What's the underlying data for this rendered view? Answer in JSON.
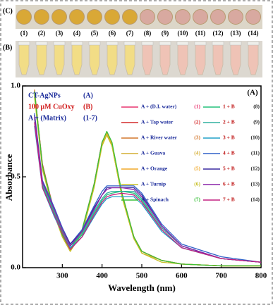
{
  "panels": {
    "C": {
      "label": "(C)",
      "wells": [
        "(1)",
        "(2)",
        "(3)",
        "(4)",
        "(5)",
        "(6)",
        "(7)",
        "(8)",
        "(9)",
        "(10)",
        "(11)",
        "(12)",
        "(13)",
        "(14)"
      ]
    },
    "B": {
      "label": "(B)"
    }
  },
  "chart_data": {
    "type": "line",
    "title": "(A)",
    "xlabel": "Wavelength (nm)",
    "ylabel": "Absorbance",
    "key": [
      {
        "text": "CT-AgNPs",
        "tag": "(A)"
      },
      {
        "text": "100 μM CuOxy",
        "tag": "(B)"
      },
      {
        "text": "A + (Matrix)",
        "tag": "(1-7)"
      }
    ],
    "x": [
      230,
      250,
      280,
      300,
      320,
      350,
      380,
      400,
      412,
      425,
      450,
      480,
      500,
      550,
      600,
      700,
      800
    ],
    "xlim": [
      200,
      800
    ],
    "xticks": [
      300,
      400,
      500,
      600,
      700,
      800
    ],
    "ylim": [
      0,
      1
    ],
    "yticks": [
      {
        "value": 0,
        "label": "0.0"
      },
      0.5,
      {
        "value": 1,
        "label": "1.0"
      }
    ],
    "grid": false,
    "series": [
      {
        "name": "A + (D.I. water)",
        "tag": "(1)",
        "color": "#e8336f",
        "values": [
          0.96,
          0.56,
          0.31,
          0.18,
          0.1,
          0.2,
          0.46,
          0.69,
          0.74,
          0.68,
          0.4,
          0.17,
          0.09,
          0.04,
          0.02,
          0.01,
          0.01
        ]
      },
      {
        "name": "A + Tap water",
        "tag": "(2)",
        "color": "#d42a2a",
        "values": [
          0.97,
          0.57,
          0.3,
          0.18,
          0.1,
          0.21,
          0.46,
          0.69,
          0.74,
          0.68,
          0.41,
          0.17,
          0.09,
          0.04,
          0.02,
          0.01,
          0.01
        ]
      },
      {
        "name": "A + River water",
        "tag": "(3)",
        "color": "#d2762c",
        "values": [
          0.98,
          0.56,
          0.3,
          0.17,
          0.09,
          0.2,
          0.45,
          0.68,
          0.74,
          0.67,
          0.4,
          0.16,
          0.09,
          0.04,
          0.02,
          0.01,
          0.01
        ]
      },
      {
        "name": "A + Guava",
        "tag": "(4)",
        "color": "#d4ae34",
        "values": [
          0.95,
          0.55,
          0.29,
          0.17,
          0.09,
          0.2,
          0.45,
          0.68,
          0.73,
          0.67,
          0.39,
          0.16,
          0.08,
          0.04,
          0.02,
          0.01,
          0.01
        ]
      },
      {
        "name": "A + Orange",
        "tag": "(5)",
        "color": "#f0a828",
        "values": [
          0.96,
          0.55,
          0.3,
          0.18,
          0.1,
          0.2,
          0.45,
          0.68,
          0.74,
          0.68,
          0.4,
          0.17,
          0.09,
          0.04,
          0.02,
          0.01,
          0.01
        ]
      },
      {
        "name": "A + Turnip",
        "tag": "(6)",
        "color": "#c8c028",
        "values": [
          0.94,
          0.54,
          0.29,
          0.17,
          0.09,
          0.19,
          0.44,
          0.67,
          0.73,
          0.67,
          0.39,
          0.16,
          0.08,
          0.03,
          0.02,
          0.01,
          0.01
        ]
      },
      {
        "name": "A + Spinach",
        "tag": "(7)",
        "color": "#38c038",
        "values": [
          0.97,
          0.56,
          0.3,
          0.18,
          0.1,
          0.21,
          0.46,
          0.69,
          0.75,
          0.69,
          0.41,
          0.17,
          0.09,
          0.04,
          0.02,
          0.01,
          0.01
        ]
      },
      {
        "name": "1 + B",
        "tag": "(8)",
        "color": "#22c07a",
        "values": [
          0.8,
          0.45,
          0.3,
          0.2,
          0.12,
          0.18,
          0.3,
          0.37,
          0.4,
          0.41,
          0.42,
          0.41,
          0.37,
          0.21,
          0.11,
          0.05,
          0.03
        ]
      },
      {
        "name": "2 + B",
        "tag": "(9)",
        "color": "#30b0a0",
        "values": [
          0.82,
          0.46,
          0.31,
          0.21,
          0.12,
          0.19,
          0.31,
          0.38,
          0.41,
          0.42,
          0.42,
          0.42,
          0.38,
          0.22,
          0.12,
          0.05,
          0.03
        ]
      },
      {
        "name": "3 + B",
        "tag": "(10)",
        "color": "#20a0c8",
        "values": [
          0.78,
          0.44,
          0.28,
          0.19,
          0.11,
          0.17,
          0.28,
          0.35,
          0.38,
          0.39,
          0.39,
          0.39,
          0.35,
          0.2,
          0.11,
          0.05,
          0.03
        ]
      },
      {
        "name": "4 + B",
        "tag": "(11)",
        "color": "#3060c8",
        "values": [
          0.85,
          0.48,
          0.33,
          0.22,
          0.13,
          0.21,
          0.34,
          0.42,
          0.45,
          0.45,
          0.45,
          0.45,
          0.41,
          0.24,
          0.13,
          0.06,
          0.03
        ]
      },
      {
        "name": "5 + B",
        "tag": "(12)",
        "color": "#3a2aa0",
        "values": [
          0.84,
          0.47,
          0.32,
          0.21,
          0.13,
          0.2,
          0.33,
          0.4,
          0.44,
          0.44,
          0.44,
          0.44,
          0.4,
          0.23,
          0.12,
          0.05,
          0.03
        ]
      },
      {
        "name": "6 + B",
        "tag": "(13)",
        "color": "#8a24a8",
        "values": [
          0.83,
          0.47,
          0.32,
          0.21,
          0.12,
          0.2,
          0.32,
          0.4,
          0.43,
          0.44,
          0.44,
          0.43,
          0.39,
          0.23,
          0.12,
          0.05,
          0.03
        ]
      },
      {
        "name": "7 + B",
        "tag": "(14)",
        "color": "#c42080",
        "values": [
          0.8,
          0.44,
          0.29,
          0.19,
          0.1,
          0.17,
          0.29,
          0.36,
          0.39,
          0.4,
          0.41,
          0.4,
          0.36,
          0.21,
          0.11,
          0.05,
          0.03
        ]
      }
    ]
  }
}
